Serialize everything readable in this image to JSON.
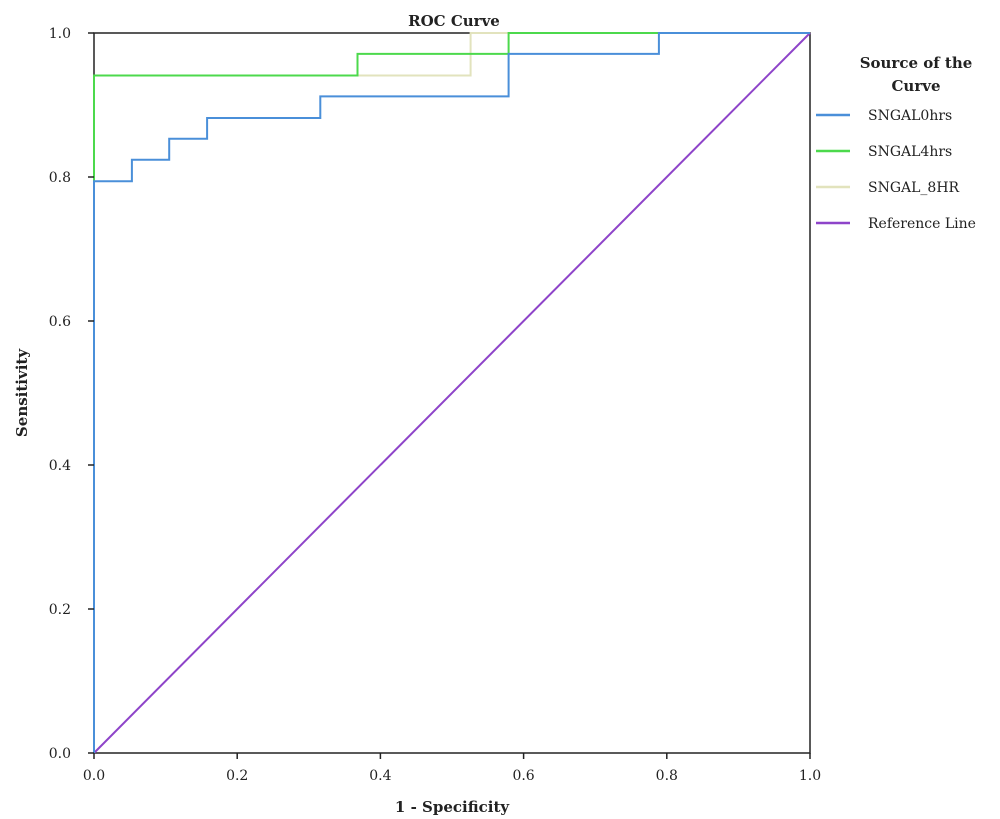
{
  "chart_data": {
    "type": "line",
    "title": "ROC Curve",
    "xlabel": "1 - Specificity",
    "ylabel": "Sensitivity",
    "xlim": [
      0,
      1
    ],
    "ylim": [
      0,
      1
    ],
    "x_ticks": [
      "0.0",
      "0.2",
      "0.4",
      "0.6",
      "0.8",
      "1.0"
    ],
    "y_ticks": [
      "0.0",
      "0.2",
      "0.4",
      "0.6",
      "0.8",
      "1.0"
    ],
    "grid": false,
    "legend_position": "right",
    "legend_title_lines": [
      "Source of the",
      "Curve"
    ],
    "series": [
      {
        "name": "SNGAL0hrs",
        "color": "#4a8fd9",
        "x": [
          0,
          0,
          0.053,
          0.053,
          0.105,
          0.105,
          0.158,
          0.158,
          0.316,
          0.316,
          0.579,
          0.579,
          0.789,
          0.789,
          1.0
        ],
        "y": [
          0,
          0.794,
          0.794,
          0.824,
          0.824,
          0.853,
          0.853,
          0.882,
          0.882,
          0.912,
          0.912,
          0.971,
          0.971,
          1.0,
          1.0
        ]
      },
      {
        "name": "SNGAL4hrs",
        "color": "#4cd94c",
        "x": [
          0,
          0,
          0.368,
          0.368,
          0.579,
          0.579,
          1.0
        ],
        "y": [
          0,
          0.941,
          0.941,
          0.971,
          0.971,
          1.0,
          1.0
        ]
      },
      {
        "name": "SNGAL_8HR",
        "color": "#e2e3bd",
        "x": [
          0,
          0,
          0.526,
          0.526,
          1.0
        ],
        "y": [
          0,
          0.941,
          0.941,
          1.0,
          1.0
        ]
      },
      {
        "name": "Reference Line",
        "color": "#8e44c9",
        "x": [
          0,
          1.0
        ],
        "y": [
          0,
          1.0
        ]
      }
    ]
  }
}
